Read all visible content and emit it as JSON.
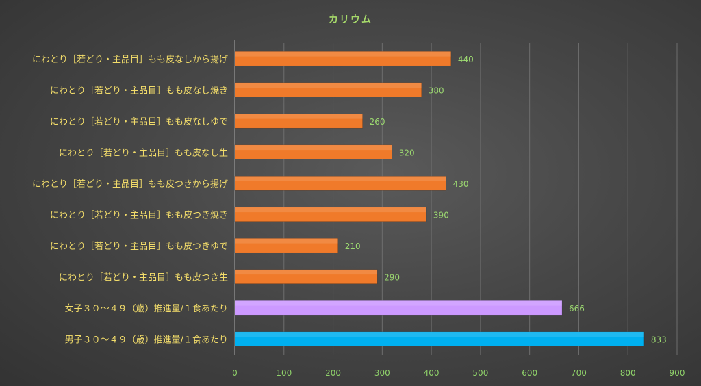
{
  "chart_data": {
    "type": "bar",
    "orientation": "horizontal",
    "title": "カリウム",
    "categories": [
      "にわとり［若どり・主品目］もも皮なしから揚げ",
      "にわとり［若どり・主品目］もも皮なし焼き",
      "にわとり［若どり・主品目］もも皮なしゆで",
      "にわとり［若どり・主品目］もも皮なし生",
      "にわとり［若どり・主品目］もも皮つきから揚げ",
      "にわとり［若どり・主品目］もも皮つき焼き",
      "にわとり［若どり・主品目］もも皮つきゆで",
      "にわとり［若どり・主品目］もも皮つき生",
      "女子３０～４９（歳）推進量/１食あたり",
      "男子３０～４９（歳）推進量/１食あたり"
    ],
    "values": [
      440,
      380,
      260,
      320,
      430,
      390,
      210,
      290,
      666,
      833
    ],
    "bar_colors": [
      "#f07a2a",
      "#f07a2a",
      "#f07a2a",
      "#f07a2a",
      "#f07a2a",
      "#f07a2a",
      "#f07a2a",
      "#f07a2a",
      "#cc99ff",
      "#00b0f0"
    ],
    "xlim": [
      0,
      900
    ],
    "xticks": [
      "0",
      "100",
      "200",
      "300",
      "400",
      "500",
      "600",
      "700",
      "800",
      "900"
    ],
    "grid": "vertical",
    "legend": "none",
    "xlabel": "",
    "ylabel": ""
  }
}
